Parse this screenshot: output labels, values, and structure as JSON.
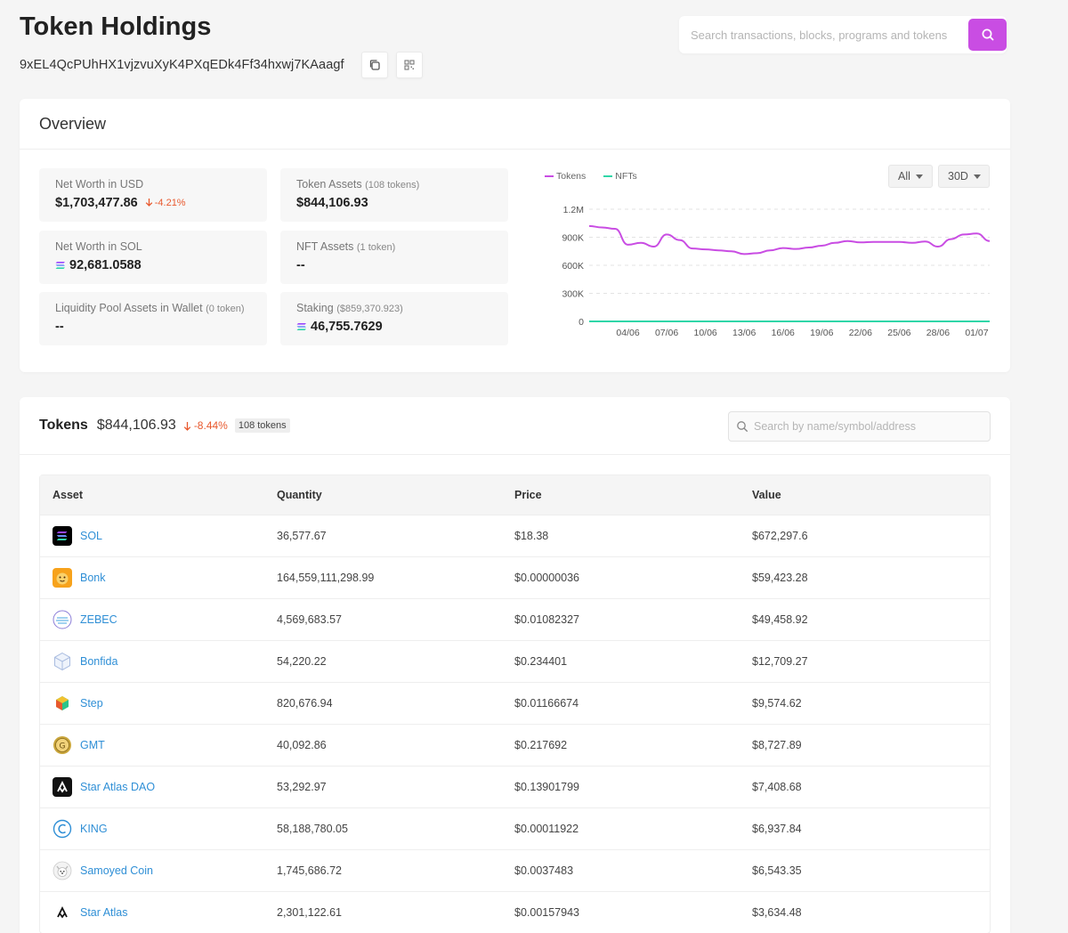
{
  "page": {
    "title": "Token Holdings",
    "address": "9xEL4QcPUhHX1vjzvuXyK4PXqEDk4Ff34hxwj7KAaagf"
  },
  "search": {
    "placeholder": "Search transactions, blocks, programs and tokens"
  },
  "overview": {
    "title": "Overview",
    "stats": {
      "net_worth_usd": {
        "label": "Net Worth in USD",
        "value": "$1,703,477.86",
        "change": "-4.21%"
      },
      "token_assets": {
        "label": "Token Assets",
        "sub": "(108 tokens)",
        "value": "$844,106.93"
      },
      "net_worth_sol": {
        "label": "Net Worth in SOL",
        "value": "92,681.0588"
      },
      "nft_assets": {
        "label": "NFT Assets",
        "sub": "(1 token)",
        "value": "--"
      },
      "liquidity": {
        "label": "Liquidity Pool Assets in Wallet",
        "sub": "(0 token)",
        "value": "--"
      },
      "staking": {
        "label": "Staking",
        "sub": "($859,370.923)",
        "value": "46,755.7629"
      }
    },
    "filters": {
      "type": "All",
      "range": "30D"
    },
    "colors": {
      "tokens": "#c94de3",
      "nfts": "#2fd6a8",
      "accent": "#c94de3",
      "negative": "#e8592e",
      "link": "#2f8fd6"
    }
  },
  "chart_data": {
    "type": "line",
    "x": [
      "01/06",
      "02/06",
      "03/06",
      "04/06",
      "05/06",
      "06/06",
      "07/06",
      "08/06",
      "09/06",
      "10/06",
      "11/06",
      "12/06",
      "13/06",
      "14/06",
      "15/06",
      "16/06",
      "17/06",
      "18/06",
      "19/06",
      "20/06",
      "21/06",
      "22/06",
      "23/06",
      "24/06",
      "25/06",
      "26/06",
      "27/06",
      "28/06",
      "29/06",
      "30/06",
      "01/07",
      "02/07"
    ],
    "x_tick_labels": [
      "04/06",
      "07/06",
      "10/06",
      "13/06",
      "16/06",
      "19/06",
      "22/06",
      "25/06",
      "28/06",
      "01/07"
    ],
    "y_tick_labels": [
      "0",
      "300K",
      "600K",
      "900K",
      "1.2M"
    ],
    "ylim": [
      0,
      1200000
    ],
    "series": [
      {
        "name": "Tokens",
        "values": [
          1020000,
          1005000,
          990000,
          820000,
          840000,
          800000,
          930000,
          870000,
          780000,
          770000,
          760000,
          750000,
          720000,
          730000,
          760000,
          785000,
          775000,
          790000,
          810000,
          840000,
          860000,
          845000,
          850000,
          850000,
          850000,
          840000,
          855000,
          800000,
          880000,
          930000,
          940000,
          860000
        ]
      },
      {
        "name": "NFTs",
        "values": [
          0,
          0,
          0,
          0,
          0,
          0,
          0,
          0,
          0,
          0,
          0,
          0,
          0,
          0,
          0,
          0,
          0,
          0,
          0,
          0,
          0,
          0,
          0,
          0,
          0,
          0,
          0,
          0,
          0,
          0,
          0,
          0
        ]
      }
    ],
    "grid": true,
    "legend": "top-left"
  },
  "tokens": {
    "title": "Tokens",
    "total": "$844,106.93",
    "change": "-8.44%",
    "count": "108 tokens",
    "search_placeholder": "Search by name/symbol/address",
    "columns": [
      "Asset",
      "Quantity",
      "Price",
      "Value"
    ],
    "rows": [
      {
        "asset": "SOL",
        "quantity": "36,577.67",
        "price": "$18.38",
        "value": "$672,297.6",
        "icon": "solana-icon"
      },
      {
        "asset": "Bonk",
        "quantity": "164,559,111,298.99",
        "price": "$0.00000036",
        "value": "$59,423.28",
        "icon": "bonk-icon"
      },
      {
        "asset": "ZEBEC",
        "quantity": "4,569,683.57",
        "price": "$0.01082327",
        "value": "$49,458.92",
        "icon": "zebec-icon"
      },
      {
        "asset": "Bonfida",
        "quantity": "54,220.22",
        "price": "$0.234401",
        "value": "$12,709.27",
        "icon": "bonfida-icon"
      },
      {
        "asset": "Step",
        "quantity": "820,676.94",
        "price": "$0.01166674",
        "value": "$9,574.62",
        "icon": "step-icon"
      },
      {
        "asset": "GMT",
        "quantity": "40,092.86",
        "price": "$0.217692",
        "value": "$8,727.89",
        "icon": "gmt-icon"
      },
      {
        "asset": "Star Atlas DAO",
        "quantity": "53,292.97",
        "price": "$0.13901799",
        "value": "$7,408.68",
        "icon": "star-atlas-dao-icon"
      },
      {
        "asset": "KING",
        "quantity": "58,188,780.05",
        "price": "$0.00011922",
        "value": "$6,937.84",
        "icon": "king-icon"
      },
      {
        "asset": "Samoyed Coin",
        "quantity": "1,745,686.72",
        "price": "$0.0037483",
        "value": "$6,543.35",
        "icon": "samoyed-icon"
      },
      {
        "asset": "Star Atlas",
        "quantity": "2,301,122.61",
        "price": "$0.00157943",
        "value": "$3,634.48",
        "icon": "star-atlas-icon"
      }
    ]
  }
}
